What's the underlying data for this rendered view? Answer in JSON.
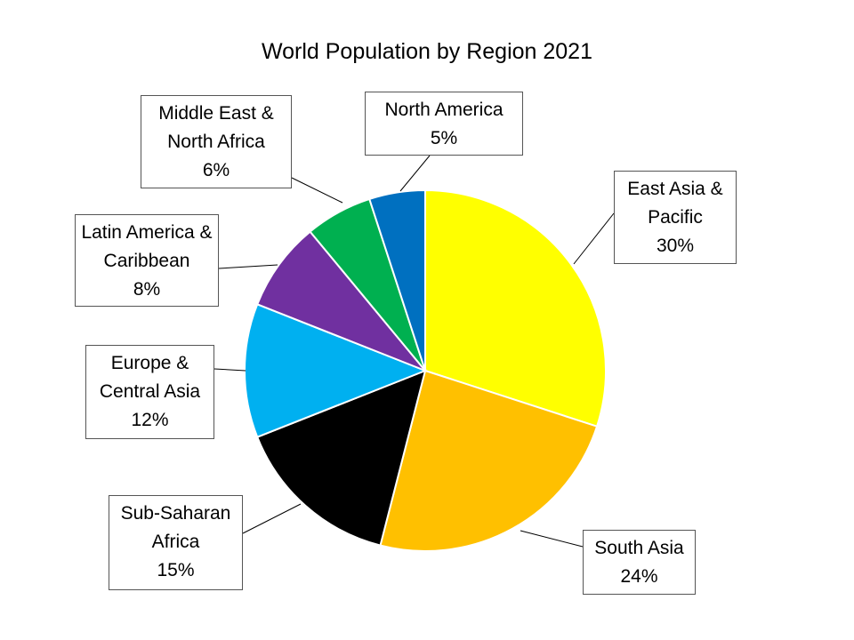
{
  "chart_data": {
    "type": "pie",
    "title": "World Population by Region 2021",
    "categories": [
      "East Asia & Pacific",
      "South Asia",
      "Sub-Saharan Africa",
      "Europe & Central Asia",
      "Latin America & Caribbean",
      "Middle East & North Africa",
      "North America"
    ],
    "values": [
      30,
      24,
      15,
      12,
      8,
      6,
      5
    ],
    "value_labels": [
      "30%",
      "24%",
      "15%",
      "12%",
      "8%",
      "6%",
      "5%"
    ],
    "colors": [
      "#ffff00",
      "#ffc000",
      "#000000",
      "#00b0f0",
      "#7030a0",
      "#00b050",
      "#0070c0"
    ]
  }
}
